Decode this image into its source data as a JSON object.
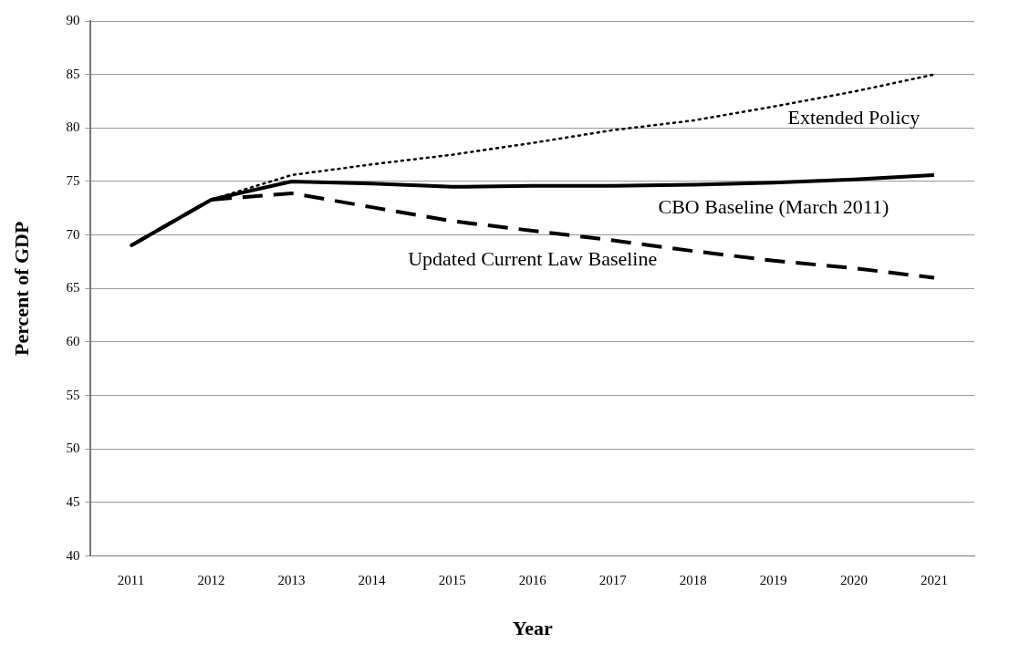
{
  "chart_data": {
    "type": "line",
    "xlabel": "Year",
    "ylabel": "Percent of GDP",
    "categories": [
      "2011",
      "2012",
      "2013",
      "2014",
      "2015",
      "2016",
      "2017",
      "2018",
      "2019",
      "2020",
      "2021"
    ],
    "series": [
      {
        "name": "Extended Policy",
        "color": "#000000",
        "line_style": "dotted",
        "values": [
          69,
          73.3,
          75.6,
          76.6,
          77.5,
          78.6,
          79.8,
          80.7,
          82.0,
          83.4,
          85.0
        ]
      },
      {
        "name": "CBO Baseline (March 2011)",
        "color": "#000000",
        "line_style": "solid",
        "values": [
          69,
          73.3,
          75.0,
          74.8,
          74.5,
          74.6,
          74.6,
          74.7,
          74.9,
          75.2,
          75.6
        ]
      },
      {
        "name": "Updated Current Law Baseline",
        "color": "#000000",
        "line_style": "dashed",
        "values": [
          69,
          73.3,
          73.9,
          72.6,
          71.3,
          70.4,
          69.5,
          68.5,
          67.6,
          66.9,
          66.0
        ]
      }
    ],
    "ylim": [
      40,
      90
    ],
    "yticks": [
      40,
      45,
      50,
      55,
      60,
      65,
      70,
      75,
      80,
      85,
      90
    ],
    "grid": "y",
    "legend": false,
    "marker": "none"
  }
}
